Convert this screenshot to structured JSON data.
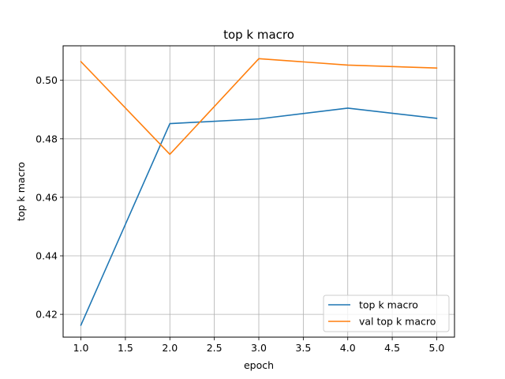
{
  "chart_data": {
    "type": "line",
    "title": "top k macro",
    "xlabel": "epoch",
    "ylabel": "top k macro",
    "x": [
      1,
      2,
      3,
      4,
      5
    ],
    "xlim": [
      0.8,
      5.2
    ],
    "ylim": [
      0.4122,
      0.5118
    ],
    "xticks": [
      1.0,
      1.5,
      2.0,
      2.5,
      3.0,
      3.5,
      4.0,
      4.5,
      5.0
    ],
    "xtick_labels": [
      "1.0",
      "1.5",
      "2.0",
      "2.5",
      "3.0",
      "3.5",
      "4.0",
      "4.5",
      "5.0"
    ],
    "yticks": [
      0.42,
      0.44,
      0.46,
      0.48,
      0.5
    ],
    "ytick_labels": [
      "0.42",
      "0.44",
      "0.46",
      "0.48",
      "0.50"
    ],
    "grid": true,
    "legend_position": "lower-right",
    "series": [
      {
        "name": "top k macro",
        "color": "#1f77b4",
        "values": [
          0.4163,
          0.4852,
          0.4868,
          0.4905,
          0.487
        ]
      },
      {
        "name": "val top k macro",
        "color": "#ff7f0e",
        "values": [
          0.5064,
          0.4747,
          0.5074,
          0.5052,
          0.5042
        ]
      }
    ]
  }
}
